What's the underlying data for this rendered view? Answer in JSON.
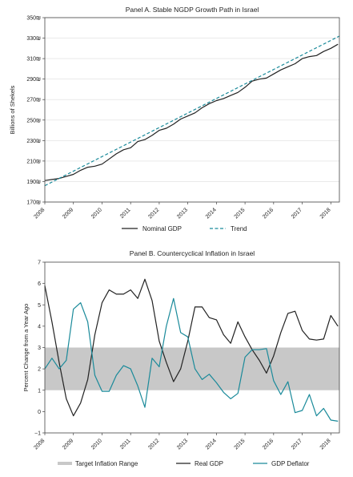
{
  "chart_data": [
    {
      "type": "line",
      "title": "Panel A. Stable NGDP Growth Path in Israel",
      "ylabel": "Billions of Shekels",
      "ylim": [
        170,
        350
      ],
      "xlim": [
        2008,
        2018.3
      ],
      "yticks": [
        {
          "v": 170,
          "label": "170₪"
        },
        {
          "v": 190,
          "label": "190₪"
        },
        {
          "v": 210,
          "label": "210₪"
        },
        {
          "v": 230,
          "label": "230₪"
        },
        {
          "v": 250,
          "label": "250₪"
        },
        {
          "v": 270,
          "label": "270₪"
        },
        {
          "v": 290,
          "label": "290₪"
        },
        {
          "v": 310,
          "label": "310₪"
        },
        {
          "v": 330,
          "label": "330₪"
        },
        {
          "v": 350,
          "label": "350₪"
        }
      ],
      "xticks": [
        "2008",
        "2009",
        "2010",
        "2011",
        "2012",
        "2013",
        "2014",
        "2015",
        "2016",
        "2017",
        "2018"
      ],
      "grid": "horizontal",
      "legend_position": "bottom",
      "series": [
        {
          "name": "Nominal GDP",
          "color": "#222222",
          "style": "solid",
          "x": [
            2008.0,
            2008.25,
            2008.5,
            2008.75,
            2009.0,
            2009.25,
            2009.5,
            2009.75,
            2010.0,
            2010.25,
            2010.5,
            2010.75,
            2011.0,
            2011.25,
            2011.5,
            2011.75,
            2012.0,
            2012.25,
            2012.5,
            2012.75,
            2013.0,
            2013.25,
            2013.5,
            2013.75,
            2014.0,
            2014.25,
            2014.5,
            2014.75,
            2015.0,
            2015.25,
            2015.5,
            2015.75,
            2016.0,
            2016.25,
            2016.5,
            2016.75,
            2017.0,
            2017.25,
            2017.5,
            2017.75,
            2018.0,
            2018.25
          ],
          "y": [
            191,
            192,
            193,
            195,
            197,
            201,
            204,
            205,
            207,
            212,
            217,
            221,
            223,
            229,
            231,
            235,
            240,
            242,
            246,
            251,
            254,
            257,
            262,
            266,
            269,
            271,
            274,
            277,
            282,
            288,
            290,
            291,
            295,
            299,
            302,
            305,
            310,
            312,
            313,
            317,
            320,
            324
          ]
        },
        {
          "name": "Trend",
          "color": "#1a8a9a",
          "style": "dashed",
          "x": [
            2008.0,
            2018.3
          ],
          "y": [
            186,
            332
          ]
        }
      ]
    },
    {
      "type": "line",
      "title": "Panel B. Countercyclical Inflation in Israel",
      "ylabel": "Percent Change from a Year Ago",
      "ylim": [
        -1,
        7
      ],
      "xlim": [
        2008,
        2018.3
      ],
      "yticks": [
        {
          "v": -1,
          "label": "−1"
        },
        {
          "v": 0,
          "label": "0"
        },
        {
          "v": 1,
          "label": "1"
        },
        {
          "v": 2,
          "label": "2"
        },
        {
          "v": 3,
          "label": "3"
        },
        {
          "v": 4,
          "label": "4"
        },
        {
          "v": 5,
          "label": "5"
        },
        {
          "v": 6,
          "label": "6"
        },
        {
          "v": 7,
          "label": "7"
        }
      ],
      "xticks": [
        "2008",
        "2009",
        "2010",
        "2011",
        "2012",
        "2013",
        "2014",
        "2015",
        "2016",
        "2017",
        "2018"
      ],
      "grid": "none",
      "legend_position": "bottom",
      "band": {
        "name": "Target Inflation Range",
        "range": [
          1,
          3
        ],
        "color": "#c8c8c8"
      },
      "series": [
        {
          "name": "Real GDP",
          "color": "#222222",
          "style": "solid",
          "x": [
            2008.0,
            2008.25,
            2008.5,
            2008.75,
            2009.0,
            2009.25,
            2009.5,
            2009.75,
            2010.0,
            2010.25,
            2010.5,
            2010.75,
            2011.0,
            2011.25,
            2011.5,
            2011.75,
            2012.0,
            2012.25,
            2012.5,
            2012.75,
            2013.0,
            2013.25,
            2013.5,
            2013.75,
            2014.0,
            2014.25,
            2014.5,
            2014.75,
            2015.0,
            2015.25,
            2015.5,
            2015.75,
            2016.0,
            2016.25,
            2016.5,
            2016.75,
            2017.0,
            2017.25,
            2017.5,
            2017.75,
            2018.0,
            2018.25
          ],
          "y": [
            5.9,
            4.2,
            2.3,
            0.6,
            -0.2,
            0.4,
            1.5,
            3.6,
            5.1,
            5.7,
            5.5,
            5.5,
            5.7,
            5.3,
            6.2,
            5.2,
            3.3,
            2.3,
            1.4,
            2.0,
            3.3,
            4.9,
            4.9,
            4.4,
            4.3,
            3.6,
            3.2,
            4.2,
            3.5,
            2.9,
            2.4,
            1.8,
            2.6,
            3.7,
            4.6,
            4.7,
            3.8,
            3.4,
            3.35,
            3.4,
            4.5,
            4.0
          ]
        },
        {
          "name": "GDP Deflator",
          "color": "#1a8a9a",
          "style": "solid",
          "x": [
            2008.0,
            2008.25,
            2008.5,
            2008.75,
            2009.0,
            2009.25,
            2009.5,
            2009.75,
            2010.0,
            2010.25,
            2010.5,
            2010.75,
            2011.0,
            2011.25,
            2011.5,
            2011.75,
            2012.0,
            2012.25,
            2012.5,
            2012.75,
            2013.0,
            2013.25,
            2013.5,
            2013.75,
            2014.0,
            2014.25,
            2014.5,
            2014.75,
            2015.0,
            2015.25,
            2015.5,
            2015.75,
            2016.0,
            2016.25,
            2016.5,
            2016.75,
            2017.0,
            2017.25,
            2017.5,
            2017.75,
            2018.0,
            2018.25
          ],
          "y": [
            2.0,
            2.5,
            2.0,
            2.4,
            4.8,
            5.1,
            4.2,
            1.7,
            0.95,
            0.95,
            1.7,
            2.15,
            2.0,
            1.2,
            0.2,
            2.5,
            2.1,
            4.0,
            5.3,
            3.7,
            3.5,
            2.0,
            1.5,
            1.75,
            1.35,
            0.9,
            0.6,
            0.85,
            2.55,
            2.9,
            2.9,
            2.95,
            1.45,
            0.8,
            1.4,
            -0.05,
            0.05,
            0.8,
            -0.2,
            0.15,
            -0.4,
            -0.45
          ]
        }
      ]
    }
  ]
}
